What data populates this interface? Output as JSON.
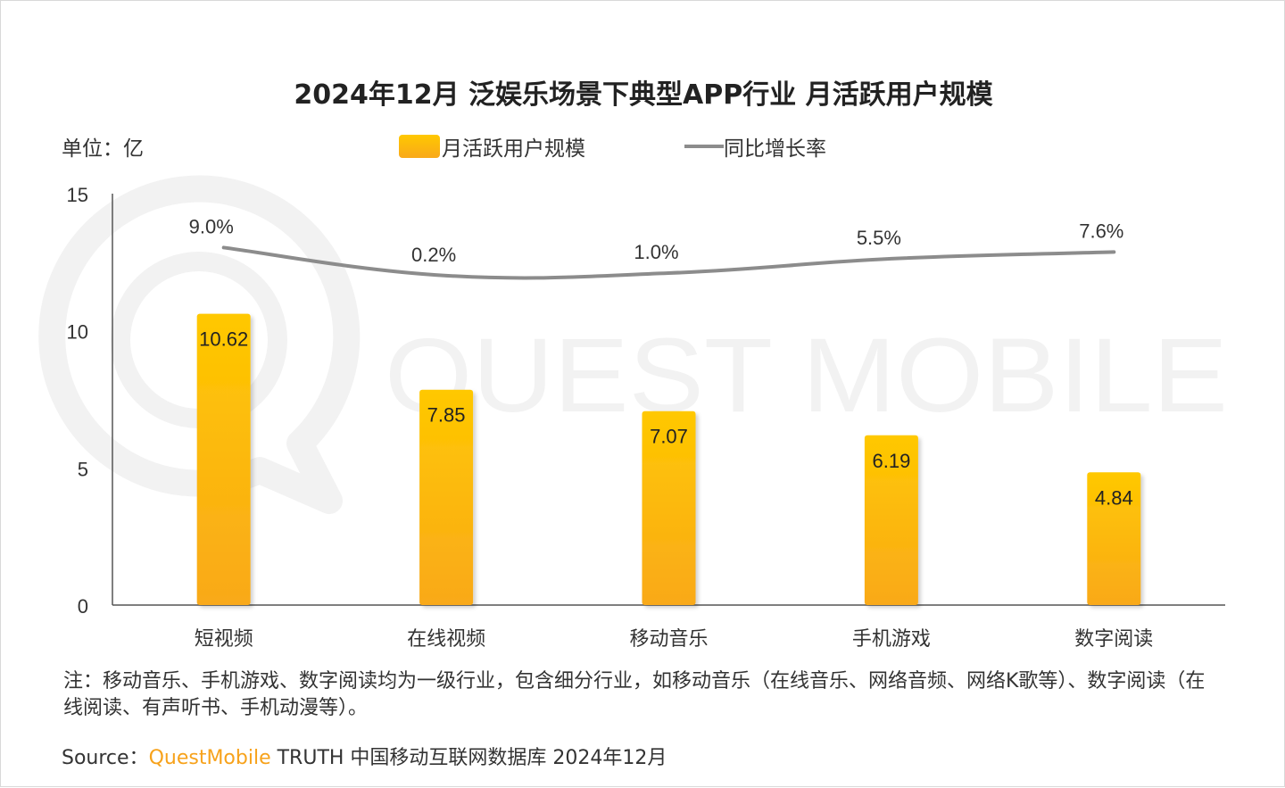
{
  "title": "2024年12月 泛娱乐场景下典型APP行业 月活跃用户规模",
  "unit_label": "单位：亿",
  "watermark": "QUEST MOBILE",
  "colors": {
    "bar_top": "#ffc800",
    "bar_bottom": "#f9a91a",
    "line": "#8c8c8c",
    "source_brand": "#f7a21b",
    "watermark": "#f2f2f2"
  },
  "chart_data": {
    "type": "bar",
    "categories": [
      "短视频",
      "在线视频",
      "移动音乐",
      "手机游戏",
      "数字阅读"
    ],
    "series": [
      {
        "name": "月活跃用户规模",
        "type": "bar",
        "values": [
          10.62,
          7.85,
          7.07,
          6.19,
          4.84
        ],
        "value_labels": [
          "10.62",
          "7.85",
          "7.07",
          "6.19",
          "4.84"
        ]
      },
      {
        "name": "同比增长率",
        "type": "line",
        "values": [
          9.0,
          0.2,
          1.0,
          5.5,
          7.6
        ],
        "value_labels": [
          "9.0%",
          "0.2%",
          "1.0%",
          "5.5%",
          "7.6%"
        ]
      }
    ],
    "y_ticks": [
      "0",
      "5",
      "10",
      "15"
    ],
    "ylim": [
      0,
      15
    ],
    "grid": false,
    "legend_position": "top-center"
  },
  "note": "注：移动音乐、手机游戏、数字阅读均为一级行业，包含细分行业，如移动音乐（在线音乐、网络音频、网络K歌等）、数字阅读（在线阅读、有声听书、手机动漫等）。",
  "source": {
    "prefix": "Source：",
    "brand": "QuestMobile",
    "rest": " TRUTH 中国移动互联网数据库 2024年12月"
  }
}
